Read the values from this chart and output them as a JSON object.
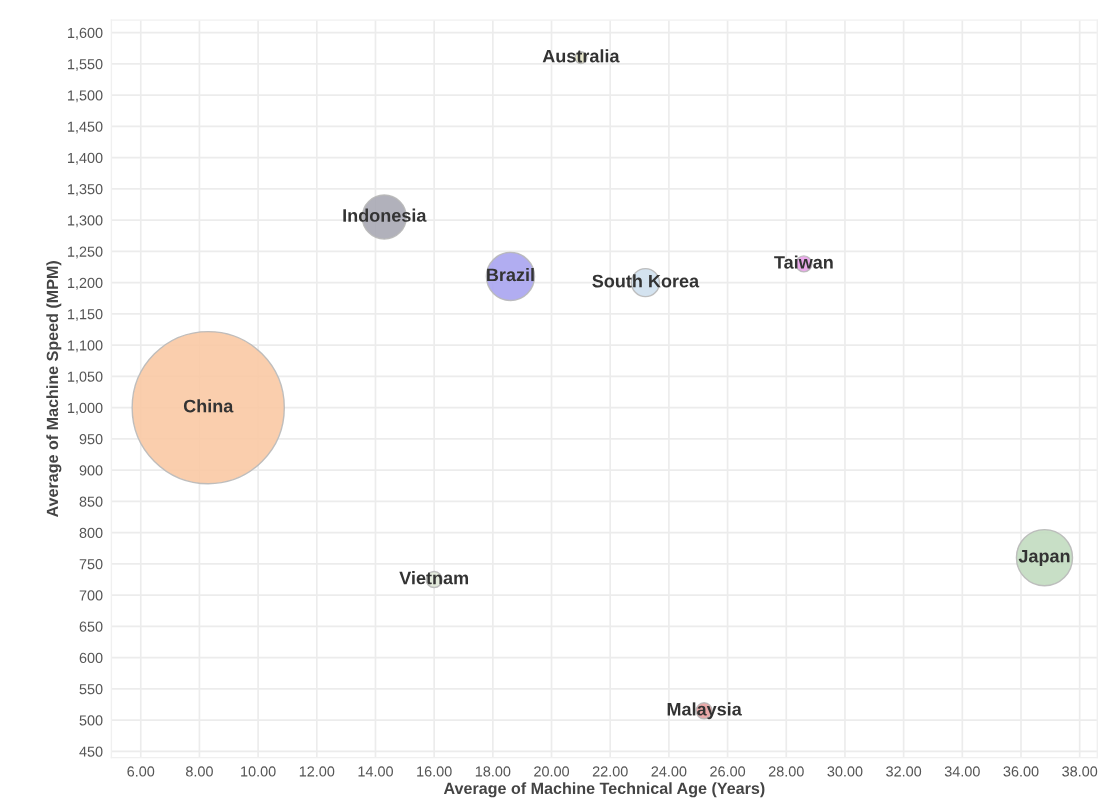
{
  "chart_data": {
    "type": "bubble",
    "xlabel": "Average of Machine Technical Age (Years)",
    "ylabel": "Average of Machine Speed (MPM)",
    "xlim": [
      5,
      38.6
    ],
    "ylim": [
      440,
      1620
    ],
    "xticks": [
      {
        "value": 6,
        "label": "6.00"
      },
      {
        "value": 8,
        "label": "8.00"
      },
      {
        "value": 10,
        "label": "10.00"
      },
      {
        "value": 12,
        "label": "12.00"
      },
      {
        "value": 14,
        "label": "14.00"
      },
      {
        "value": 16,
        "label": "16.00"
      },
      {
        "value": 18,
        "label": "18.00"
      },
      {
        "value": 20,
        "label": "20.00"
      },
      {
        "value": 22,
        "label": "22.00"
      },
      {
        "value": 24,
        "label": "24.00"
      },
      {
        "value": 26,
        "label": "26.00"
      },
      {
        "value": 28,
        "label": "28.00"
      },
      {
        "value": 30,
        "label": "30.00"
      },
      {
        "value": 32,
        "label": "32.00"
      },
      {
        "value": 34,
        "label": "34.00"
      },
      {
        "value": 36,
        "label": "36.00"
      },
      {
        "value": 38,
        "label": "38.00"
      }
    ],
    "yticks": [
      450,
      500,
      550,
      600,
      650,
      700,
      750,
      800,
      850,
      900,
      950,
      {
        "value": 1000,
        "label": "1,000"
      },
      {
        "value": 1050,
        "label": "1,050"
      },
      {
        "value": 1100,
        "label": "1,100"
      },
      {
        "value": 1150,
        "label": "1,150"
      },
      {
        "value": 1200,
        "label": "1,200"
      },
      {
        "value": 1250,
        "label": "1,250"
      },
      {
        "value": 1300,
        "label": "1,300"
      },
      {
        "value": 1350,
        "label": "1,350"
      },
      {
        "value": 1400,
        "label": "1,400"
      },
      {
        "value": 1450,
        "label": "1,450"
      },
      {
        "value": 1500,
        "label": "1,500"
      },
      {
        "value": 1550,
        "label": "1,550"
      },
      {
        "value": 1600,
        "label": "1,600"
      }
    ],
    "grid": true,
    "legend": false,
    "series": [
      {
        "name": "China",
        "color": "#f9c9a4",
        "x": [
          8.3
        ],
        "values": [
          1000
        ],
        "sizes": [
          1
        ]
      },
      {
        "name": "Indonesia",
        "color": "#a9a9b4",
        "x": [
          14.3
        ],
        "values": [
          1305
        ],
        "sizes": [
          0.084
        ]
      },
      {
        "name": "Brazil",
        "color": "#a9a4f0",
        "x": [
          18.6
        ],
        "values": [
          1210
        ],
        "sizes": [
          0.1
        ]
      },
      {
        "name": "Australia",
        "color": "#e6e6c8",
        "x": [
          21
        ],
        "values": [
          1560
        ],
        "sizes": [
          0.006
        ]
      },
      {
        "name": "South Korea",
        "color": "#cfe0ee",
        "x": [
          23.2
        ],
        "values": [
          1200
        ],
        "sizes": [
          0.034
        ]
      },
      {
        "name": "Taiwan",
        "color": "#e8a0e8",
        "x": [
          28.6
        ],
        "values": [
          1230
        ],
        "sizes": [
          0.011
        ]
      },
      {
        "name": "Japan",
        "color": "#c2dcc0",
        "x": [
          36.8
        ],
        "values": [
          760
        ],
        "sizes": [
          0.136
        ]
      },
      {
        "name": "Vietnam",
        "color": "#e0e8d8",
        "x": [
          16
        ],
        "values": [
          725
        ],
        "sizes": [
          0.011
        ]
      },
      {
        "name": "Malaysia",
        "color": "#e8a0a0",
        "x": [
          25.2
        ],
        "values": [
          515
        ],
        "sizes": [
          0.011
        ]
      }
    ]
  }
}
